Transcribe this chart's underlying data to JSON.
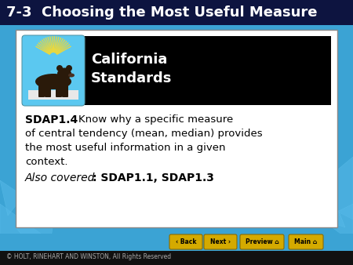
{
  "title": "7-3  Choosing the Most Useful Measure",
  "title_bg": "#0d1440",
  "title_color": "#ffffff",
  "slide_bg": "#3ba3d4",
  "content_bg": "#ffffff",
  "card_bg": "#000000",
  "card_title_line1": "California",
  "card_title_line2": "Standards",
  "card_text_color": "#ffffff",
  "body_text_bold": "SDAP1.4",
  "also_covered_italic": "Also covered",
  "also_covered_bold": ": SDAP1.1, SDAP1.3",
  "footer_text": "© HOLT, RINEHART AND WINSTON, All Rights Reserved",
  "footer_bg": "#111111",
  "footer_color": "#aaaaaa",
  "button_color": "#d4aa00",
  "button_text_color": "#000000",
  "buttons": [
    "< Back",
    "Next >",
    "Preview",
    "Main"
  ],
  "bear_icon_bg": "#5bc8f0",
  "body_lines": [
    "Know why a specific measure",
    "of central tendency (mean, median) provides",
    "the most useful information in a given",
    "context."
  ]
}
